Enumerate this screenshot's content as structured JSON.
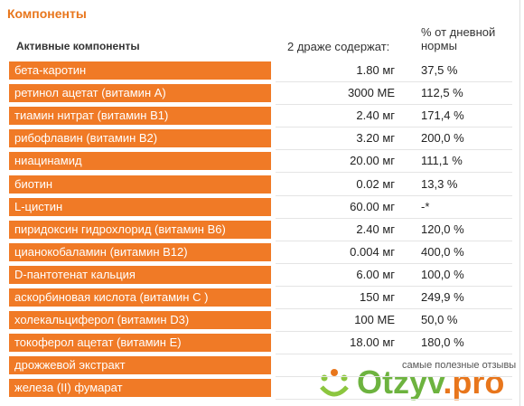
{
  "header": {
    "title": "Компоненты"
  },
  "table": {
    "columns": [
      "Активные компоненты",
      "2 драже содержат:",
      "% от дневной нормы"
    ],
    "rows": [
      {
        "name": "бета-каротин",
        "amount": "1.80 мг",
        "percent": "37,5 %"
      },
      {
        "name": "ретинол ацетат (витамин А)",
        "amount": "3000 МЕ",
        "percent": "112,5 %"
      },
      {
        "name": "тиамин нитрат (витамин В1)",
        "amount": "2.40 мг",
        "percent": "171,4 %"
      },
      {
        "name": "рибофлавин (витамин В2)",
        "amount": "3.20 мг",
        "percent": "200,0 %"
      },
      {
        "name": "ниацинамид",
        "amount": "20.00 мг",
        "percent": "111,1 %"
      },
      {
        "name": "биотин",
        "amount": "0.02 мг",
        "percent": "13,3 %"
      },
      {
        "name": "L-цистин",
        "amount": "60.00 мг",
        "percent": "-*"
      },
      {
        "name": "пиридоксин гидрохлорид (витамин В6)",
        "amount": "2.40 мг",
        "percent": "120,0 %"
      },
      {
        "name": "цианокобаламин (витамин В12)",
        "amount": "0.004 мг",
        "percent": "400,0 %"
      },
      {
        "name": "D-пантотенат кальция",
        "amount": "6.00 мг",
        "percent": "100,0 %"
      },
      {
        "name": "аскорбиновая кислота (витамин С )",
        "amount": "150 мг",
        "percent": "249,9 %"
      },
      {
        "name": "холекальциферол (витамин D3)",
        "amount": "100 МЕ",
        "percent": "50,0 %"
      },
      {
        "name": "токоферол ацетат (витамин Е)",
        "amount": "18.00 мг",
        "percent": "180,0 %"
      },
      {
        "name": "дрожжевой экстракт"
      },
      {
        "name": "железа (II) фумарат"
      }
    ]
  },
  "watermark": {
    "tagline": "самые полезные отзывы",
    "brand": "Otzyv",
    "domain": ".pro"
  }
}
